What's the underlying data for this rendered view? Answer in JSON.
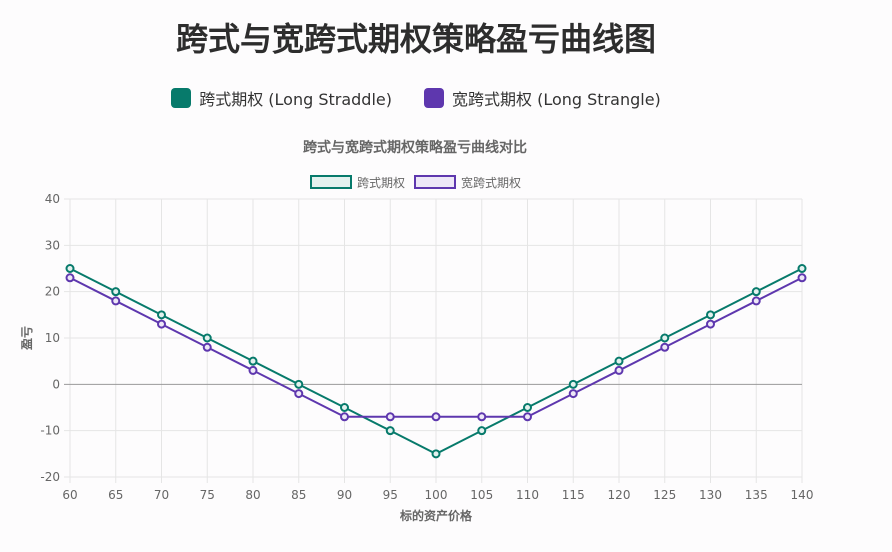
{
  "header": {
    "title": "跨式与宽跨式期权策略盈亏曲线图"
  },
  "legend_top": [
    {
      "label": "跨式期权 (Long Straddle)",
      "color": "#077a6b"
    },
    {
      "label": "宽跨式期权 (Long Strangle)",
      "color": "#5e37ae"
    }
  ],
  "chart_data": {
    "type": "line",
    "title": "跨式与宽跨式期权策略盈亏曲线对比",
    "xlabel": "标的资产价格",
    "ylabel": "盈亏",
    "x": [
      60,
      65,
      70,
      75,
      80,
      85,
      90,
      95,
      100,
      105,
      110,
      115,
      120,
      125,
      130,
      135,
      140
    ],
    "xlim": [
      60,
      140
    ],
    "ylim": [
      -20,
      40
    ],
    "y_ticks": [
      -20,
      -10,
      0,
      10,
      20,
      30,
      40
    ],
    "grid": true,
    "legend_position": "top",
    "series": [
      {
        "name": "跨式期权",
        "color": "#077a6b",
        "fill": "#e3f1ee",
        "values": [
          25,
          20,
          15,
          10,
          5,
          0,
          -5,
          -10,
          -15,
          -10,
          -5,
          0,
          5,
          10,
          15,
          20,
          25
        ]
      },
      {
        "name": "宽跨式期权",
        "color": "#5e37ae",
        "fill": "#ede7f7",
        "values": [
          23,
          18,
          13,
          8,
          3,
          -2,
          -7,
          -7,
          -7,
          -7,
          -7,
          -2,
          3,
          8,
          13,
          18,
          23
        ]
      }
    ]
  }
}
